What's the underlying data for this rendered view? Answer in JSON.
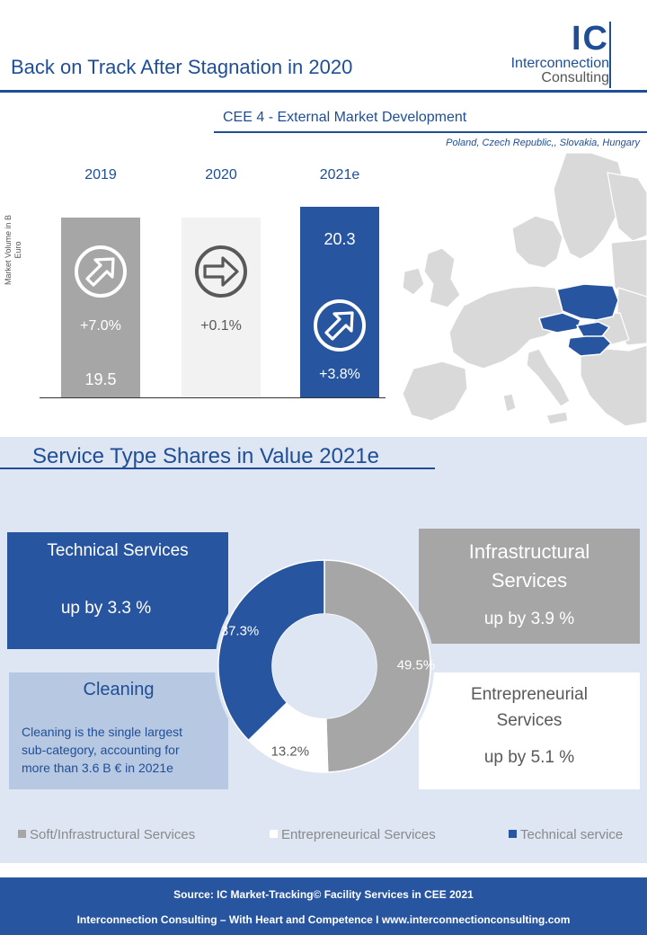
{
  "header": {
    "title": "Back on Track After Stagnation in 2020",
    "logo_mark": "IC",
    "logo_line1": "Interconnection",
    "logo_line2": "Consulting"
  },
  "market": {
    "title": "CEE 4 - External Market Development",
    "countries": "Poland,  Czech Republic,,  Slovakia,  Hungary",
    "ylabel": "Market Volume in B Euro"
  },
  "chart_data": [
    {
      "type": "bar",
      "title": "CEE 4 - External Market Development",
      "ylabel": "Market Volume in B Euro",
      "categories": [
        "2019",
        "2020",
        "2021e"
      ],
      "values": [
        19.5,
        null,
        20.3
      ],
      "value_labels": [
        "19.5",
        "",
        "20.3"
      ],
      "growth_labels": [
        "+7.0%",
        "+0.1%",
        "+3.8%"
      ],
      "growth": [
        7.0,
        0.1,
        3.8
      ],
      "colors": [
        "#a6a6a6",
        "#f2f2f2",
        "#2855a0"
      ],
      "arrow_icons": [
        "arrow-up-right-icon",
        "arrow-right-icon",
        "arrow-up-right-icon"
      ]
    },
    {
      "type": "pie",
      "title": "Service Type Shares in Value 2021e",
      "slices": [
        {
          "name": "Soft/Infrastructural Services",
          "value": 49.5,
          "label": "49.5%",
          "color": "#a6a6a6"
        },
        {
          "name": "Entrepreneurical Services",
          "value": 13.2,
          "label": "13.2%",
          "color": "#ffffff"
        },
        {
          "name": "Technical service",
          "value": 37.3,
          "label": "37.3%",
          "color": "#2855a0"
        }
      ],
      "legend_position": "bottom"
    }
  ],
  "service": {
    "title": "Service Type Shares in Value 2021e",
    "tech": {
      "heading": "Technical Services",
      "sub": "up by 3.3 %"
    },
    "infra": {
      "heading_1": "Infrastructural",
      "heading_2": "Services",
      "sub": "up by 3.9 %"
    },
    "clean": {
      "heading": "Cleaning",
      "body_1": "Cleaning is the single largest",
      "body_2": "sub-category, accounting for",
      "body_3": "more than 3.6 B € in 2021e"
    },
    "entre": {
      "heading_1": "Entrepreneurial",
      "heading_2": "Services",
      "sub": "up by 5.1 %"
    }
  },
  "footer": {
    "line1": "Source: IC Market-Tracking© Facility Services in CEE  2021",
    "line2": "Interconnection Consulting – With Heart and Competence I  www.interconnectionconsulting.com"
  },
  "colors": {
    "blue": "#2855a0",
    "grey": "#a6a6a6",
    "light": "#f2f2f2",
    "panel": "#dde6f2"
  }
}
